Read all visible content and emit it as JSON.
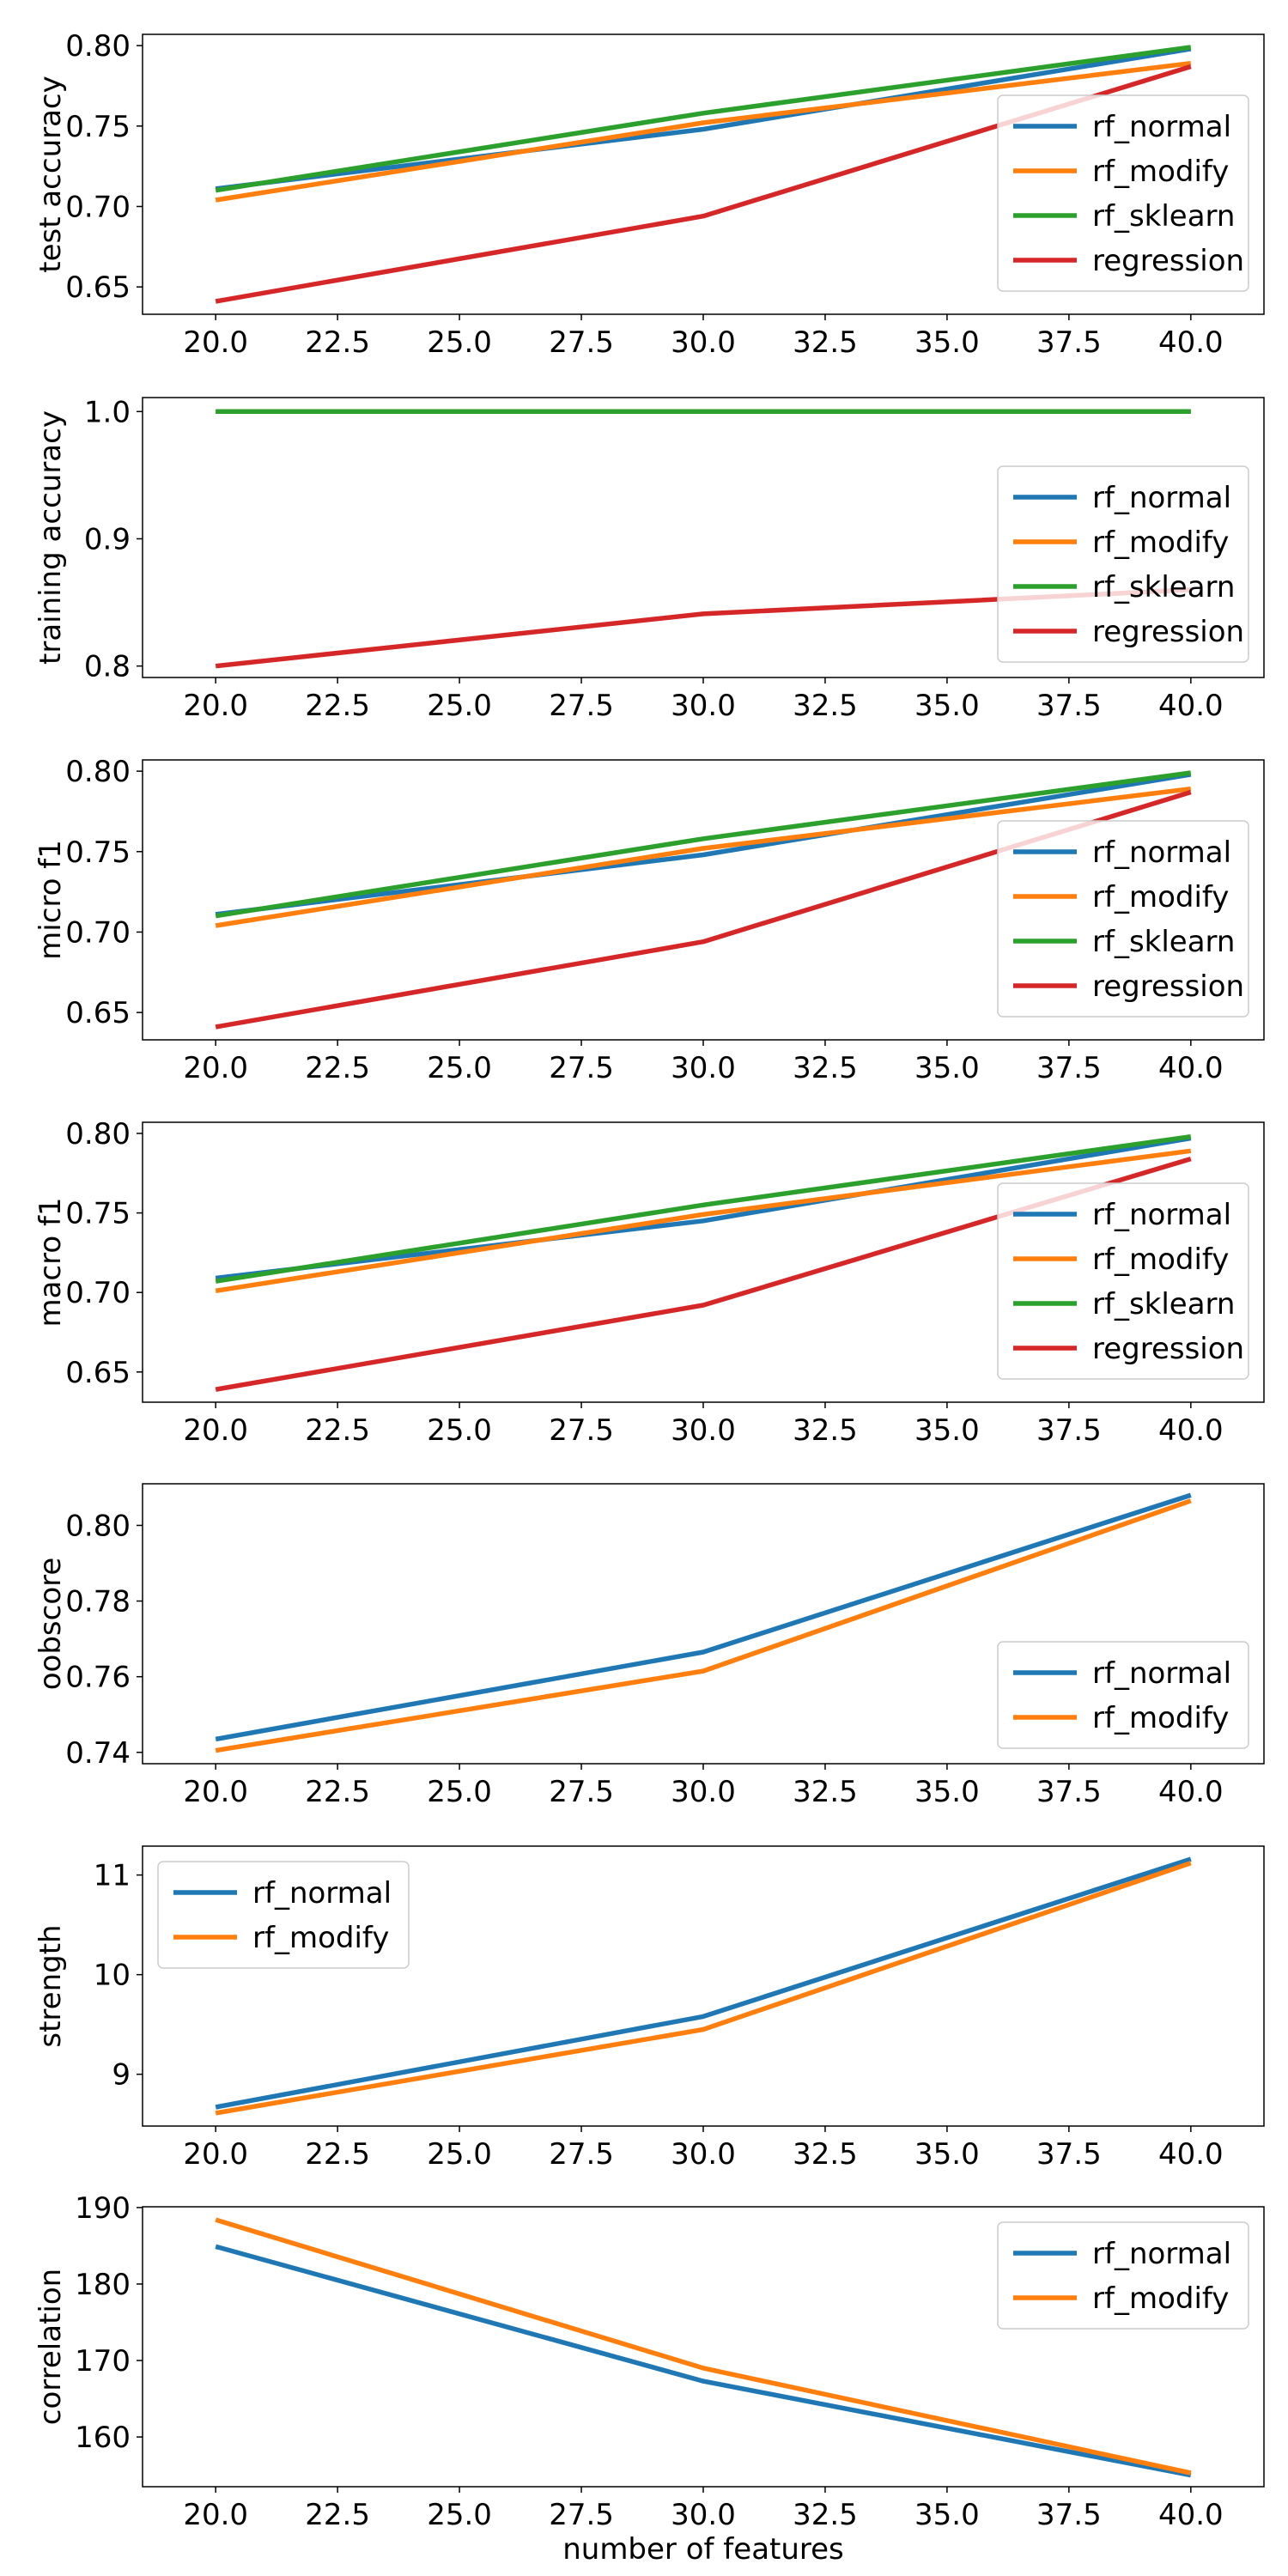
{
  "colors": {
    "rf_normal": "#1f77b4",
    "rf_modify": "#ff7f0e",
    "rf_sklearn": "#2ca02c",
    "regression": "#d62728"
  },
  "chart_data": [
    {
      "type": "line",
      "ylabel": "test accuracy",
      "x": [
        20.0,
        30.0,
        40.0
      ],
      "xlim": [
        18.5,
        41.5
      ],
      "ylim": [
        0.633,
        0.807
      ],
      "xticks": [
        "20.0",
        "22.5",
        "25.0",
        "27.5",
        "30.0",
        "32.5",
        "35.0",
        "37.5",
        "40.0"
      ],
      "xtick_values": [
        20.0,
        22.5,
        25.0,
        27.5,
        30.0,
        32.5,
        35.0,
        37.5,
        40.0
      ],
      "yticks": [
        "0.65",
        "0.70",
        "0.75",
        "0.80"
      ],
      "ytick_values": [
        0.65,
        0.7,
        0.75,
        0.8
      ],
      "legend_position": "center-right",
      "series": [
        {
          "name": "rf_normal",
          "values": [
            0.711,
            0.748,
            0.798
          ]
        },
        {
          "name": "rf_modify",
          "values": [
            0.704,
            0.752,
            0.789
          ]
        },
        {
          "name": "rf_sklearn",
          "values": [
            0.71,
            0.758,
            0.799
          ]
        },
        {
          "name": "regression",
          "values": [
            0.641,
            0.694,
            0.787
          ]
        }
      ]
    },
    {
      "type": "line",
      "ylabel": "training accuracy",
      "x": [
        20.0,
        30.0,
        40.0
      ],
      "xlim": [
        18.5,
        41.5
      ],
      "ylim": [
        0.791,
        1.011
      ],
      "xticks": [
        "20.0",
        "22.5",
        "25.0",
        "27.5",
        "30.0",
        "32.5",
        "35.0",
        "37.5",
        "40.0"
      ],
      "xtick_values": [
        20.0,
        22.5,
        25.0,
        27.5,
        30.0,
        32.5,
        35.0,
        37.5,
        40.0
      ],
      "yticks": [
        "0.8",
        "0.9",
        "1.0"
      ],
      "ytick_values": [
        0.8,
        0.9,
        1.0
      ],
      "legend_position": "lower-right",
      "series": [
        {
          "name": "rf_normal",
          "values": [
            1.0,
            1.0,
            1.0
          ]
        },
        {
          "name": "rf_modify",
          "values": [
            1.0,
            1.0,
            1.0
          ]
        },
        {
          "name": "rf_sklearn",
          "values": [
            1.0,
            1.0,
            1.0
          ]
        },
        {
          "name": "regression",
          "values": [
            0.8,
            0.841,
            0.86
          ]
        }
      ]
    },
    {
      "type": "line",
      "ylabel": "micro f1",
      "x": [
        20.0,
        30.0,
        40.0
      ],
      "xlim": [
        18.5,
        41.5
      ],
      "ylim": [
        0.633,
        0.807
      ],
      "xticks": [
        "20.0",
        "22.5",
        "25.0",
        "27.5",
        "30.0",
        "32.5",
        "35.0",
        "37.5",
        "40.0"
      ],
      "xtick_values": [
        20.0,
        22.5,
        25.0,
        27.5,
        30.0,
        32.5,
        35.0,
        37.5,
        40.0
      ],
      "yticks": [
        "0.65",
        "0.70",
        "0.75",
        "0.80"
      ],
      "ytick_values": [
        0.65,
        0.7,
        0.75,
        0.8
      ],
      "legend_position": "center-right",
      "series": [
        {
          "name": "rf_normal",
          "values": [
            0.711,
            0.748,
            0.798
          ]
        },
        {
          "name": "rf_modify",
          "values": [
            0.704,
            0.752,
            0.789
          ]
        },
        {
          "name": "rf_sklearn",
          "values": [
            0.71,
            0.758,
            0.799
          ]
        },
        {
          "name": "regression",
          "values": [
            0.641,
            0.694,
            0.787
          ]
        }
      ]
    },
    {
      "type": "line",
      "ylabel": "macro f1",
      "x": [
        20.0,
        30.0,
        40.0
      ],
      "xlim": [
        18.5,
        41.5
      ],
      "ylim": [
        0.631,
        0.807
      ],
      "xticks": [
        "20.0",
        "22.5",
        "25.0",
        "27.5",
        "30.0",
        "32.5",
        "35.0",
        "37.5",
        "40.0"
      ],
      "xtick_values": [
        20.0,
        22.5,
        25.0,
        27.5,
        30.0,
        32.5,
        35.0,
        37.5,
        40.0
      ],
      "yticks": [
        "0.65",
        "0.70",
        "0.75",
        "0.80"
      ],
      "ytick_values": [
        0.65,
        0.7,
        0.75,
        0.8
      ],
      "legend_position": "center-right",
      "series": [
        {
          "name": "rf_normal",
          "values": [
            0.709,
            0.745,
            0.797
          ]
        },
        {
          "name": "rf_modify",
          "values": [
            0.701,
            0.749,
            0.789
          ]
        },
        {
          "name": "rf_sklearn",
          "values": [
            0.707,
            0.755,
            0.798
          ]
        },
        {
          "name": "regression",
          "values": [
            0.639,
            0.692,
            0.784
          ]
        }
      ]
    },
    {
      "type": "line",
      "ylabel": "oobscore",
      "x": [
        20.0,
        30.0,
        40.0
      ],
      "xlim": [
        18.5,
        41.5
      ],
      "ylim": [
        0.737,
        0.811
      ],
      "xticks": [
        "20.0",
        "22.5",
        "25.0",
        "27.5",
        "30.0",
        "32.5",
        "35.0",
        "37.5",
        "40.0"
      ],
      "xtick_values": [
        20.0,
        22.5,
        25.0,
        27.5,
        30.0,
        32.5,
        35.0,
        37.5,
        40.0
      ],
      "yticks": [
        "0.74",
        "0.76",
        "0.78",
        "0.80"
      ],
      "ytick_values": [
        0.74,
        0.76,
        0.78,
        0.8
      ],
      "legend_position": "lower-right",
      "series": [
        {
          "name": "rf_normal",
          "values": [
            0.7435,
            0.7665,
            0.808
          ]
        },
        {
          "name": "rf_modify",
          "values": [
            0.7405,
            0.7615,
            0.8065
          ]
        }
      ]
    },
    {
      "type": "line",
      "ylabel": "strength",
      "x": [
        20.0,
        30.0,
        40.0
      ],
      "xlim": [
        18.5,
        41.5
      ],
      "ylim": [
        8.48,
        11.29
      ],
      "xticks": [
        "20.0",
        "22.5",
        "25.0",
        "27.5",
        "30.0",
        "32.5",
        "35.0",
        "37.5",
        "40.0"
      ],
      "xtick_values": [
        20.0,
        22.5,
        25.0,
        27.5,
        30.0,
        32.5,
        35.0,
        37.5,
        40.0
      ],
      "yticks": [
        "9",
        "10",
        "11"
      ],
      "ytick_values": [
        9,
        10,
        11
      ],
      "legend_position": "upper-left",
      "series": [
        {
          "name": "rf_normal",
          "values": [
            8.67,
            9.58,
            11.16
          ]
        },
        {
          "name": "rf_modify",
          "values": [
            8.61,
            9.45,
            11.12
          ]
        }
      ]
    },
    {
      "type": "line",
      "ylabel": "correlation",
      "xlabel": "number of features",
      "x": [
        20.0,
        30.0,
        40.0
      ],
      "xlim": [
        18.5,
        41.5
      ],
      "ylim": [
        153.5,
        190.1
      ],
      "xticks": [
        "20.0",
        "22.5",
        "25.0",
        "27.5",
        "30.0",
        "32.5",
        "35.0",
        "37.5",
        "40.0"
      ],
      "xtick_values": [
        20.0,
        22.5,
        25.0,
        27.5,
        30.0,
        32.5,
        35.0,
        37.5,
        40.0
      ],
      "yticks": [
        "160",
        "170",
        "180",
        "190"
      ],
      "ytick_values": [
        160,
        170,
        180,
        190
      ],
      "legend_position": "upper-right",
      "series": [
        {
          "name": "rf_normal",
          "values": [
            184.9,
            167.3,
            155.0
          ]
        },
        {
          "name": "rf_modify",
          "values": [
            188.4,
            169.0,
            155.3
          ]
        }
      ]
    }
  ]
}
